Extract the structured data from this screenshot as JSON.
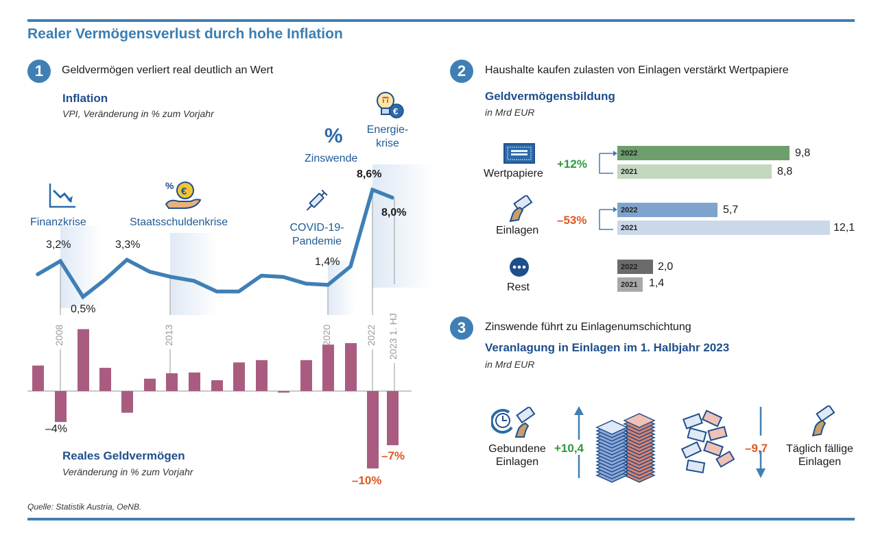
{
  "title": "Realer Vermögensverlust durch hohe Inflation",
  "source": "Quelle: Statistik Austria, OeNB.",
  "colors": {
    "accent_blue": "#3f7fb5",
    "heading_blue": "#1f4e8c",
    "bar_purple": "#a95c80",
    "negative_orange": "#e0561f",
    "positive_green": "#2e9a3c",
    "wp_2022": "#6c9f6c",
    "wp_2021": "#c4d8bf",
    "ein_2022": "#7fa3cc",
    "ein_2021": "#cbd8ea",
    "rest_2022": "#6b6b6b",
    "rest_2021": "#a8a8a8"
  },
  "section1": {
    "number": "1",
    "heading": "Geldvermögen verliert real deutlich an Wert",
    "inflation_title": "Inflation",
    "inflation_sub": "VPI, Veränderung in % zum Vorjahr",
    "real_title": "Reales Geldvermögen",
    "real_sub": "Veränderung in % zum Vorjahr",
    "events": {
      "finanzkrise": "Finanzkrise",
      "staatsschuldenkrise": "Staatsschuldenkrise",
      "covid_1": "COVID-19-",
      "covid_2": "Pandemie",
      "zinswende": "Zinswende",
      "energie_1": "Energie-",
      "energie_2": "krise"
    },
    "labels": {
      "v2008": "3,2%",
      "v2009": "0,5%",
      "v2011": "3,3%",
      "v2020": "1,4%",
      "v2022": "8,6%",
      "v2023": "8,0%",
      "b2008": "–4%",
      "b2022": "–10%",
      "b2023": "–7%"
    },
    "year_ticks": [
      "2008",
      "2013",
      "2020",
      "2022",
      "2023 1. HJ"
    ]
  },
  "section2": {
    "number": "2",
    "heading": "Haushalte kaufen zulasten von Einlagen verstärkt Wertpapiere",
    "chart_title": "Geldvermögensbildung",
    "chart_sub": "in Mrd EUR",
    "rows": [
      {
        "name": "Wertpapiere",
        "change": "+12%",
        "y2022": "9,8",
        "y2021": "8,8"
      },
      {
        "name": "Einlagen",
        "change": "–53%",
        "y2022": "5,7",
        "y2021": "12,1"
      },
      {
        "name": "Rest",
        "change": "",
        "y2022": "2,0",
        "y2021": "1,4"
      }
    ],
    "year_2022": "2022",
    "year_2021": "2021"
  },
  "section3": {
    "number": "3",
    "heading": "Zinswende führt zu Einlagenumschichtung",
    "chart_title": "Veranlagung in Einlagen im 1. Halbjahr 2023",
    "chart_sub": "in Mrd EUR",
    "left_label_1": "Gebundene",
    "left_label_2": "Einlagen",
    "left_value": "+10,4",
    "right_label_1": "Täglich fällige",
    "right_label_2": "Einlagen",
    "right_value": "–9,7"
  },
  "chart_data": [
    {
      "type": "line",
      "title": "Inflation",
      "subtitle": "VPI, Veränderung in % zum Vorjahr",
      "x": [
        "2007",
        "2008",
        "2009",
        "2010",
        "2011",
        "2012",
        "2013",
        "2014",
        "2015",
        "2016",
        "2017",
        "2018",
        "2019",
        "2020",
        "2021",
        "2022",
        "2023 1. HJ"
      ],
      "values": [
        2.2,
        3.2,
        0.5,
        1.8,
        3.3,
        2.4,
        2.0,
        1.7,
        0.9,
        0.9,
        2.1,
        2.0,
        1.5,
        1.4,
        2.8,
        8.6,
        8.0
      ],
      "annotations": [
        "Finanzkrise (2008)",
        "Staatsschuldenkrise (2011)",
        "COVID-19-Pandemie (2020)",
        "Zinswende (2022)",
        "Energiekrise (2022)"
      ],
      "labeled_points": {
        "2008": "3,2%",
        "2009": "0,5%",
        "2011": "3,3%",
        "2020": "1,4%",
        "2022": "8,6%",
        "2023 1. HJ": "8,0%"
      },
      "grid": false
    },
    {
      "type": "bar",
      "title": "Reales Geldvermögen",
      "subtitle": "Veränderung in % zum Vorjahr",
      "categories": [
        "2007",
        "2008",
        "2009",
        "2010",
        "2011",
        "2012",
        "2013",
        "2014",
        "2015",
        "2016",
        "2017",
        "2018",
        "2019",
        "2020",
        "2021",
        "2022",
        "2023 1. HJ"
      ],
      "values": [
        3.3,
        -4.0,
        8.0,
        3.0,
        -2.8,
        1.6,
        2.3,
        2.4,
        1.4,
        3.7,
        4.0,
        -0.2,
        4.0,
        6.0,
        6.2,
        -10.0,
        -7.0
      ],
      "labeled_points": {
        "2008": "–4%",
        "2022": "–10%",
        "2023 1. HJ": "–7%"
      },
      "grid": false
    },
    {
      "type": "bar",
      "orientation": "horizontal",
      "title": "Geldvermögensbildung",
      "subtitle": "in Mrd EUR",
      "categories": [
        "Wertpapiere",
        "Einlagen",
        "Rest"
      ],
      "series": [
        {
          "name": "2022",
          "values": [
            9.8,
            5.7,
            2.0
          ]
        },
        {
          "name": "2021",
          "values": [
            8.8,
            12.1,
            1.4
          ]
        }
      ],
      "annotations": {
        "Wertpapiere": "+12%",
        "Einlagen": "–53%"
      }
    },
    {
      "type": "table",
      "title": "Veranlagung in Einlagen im 1. Halbjahr 2023",
      "subtitle": "in Mrd EUR",
      "categories": [
        "Gebundene Einlagen",
        "Täglich fällige Einlagen"
      ],
      "values": [
        10.4,
        -9.7
      ]
    }
  ]
}
